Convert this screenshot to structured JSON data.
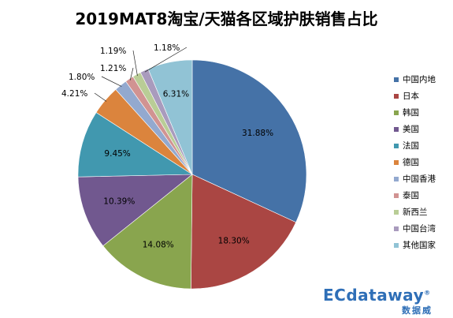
{
  "chart_data": {
    "type": "pie",
    "title": "2019MAT8淘宝/天猫各区域护肤销售占比",
    "categories": [
      "中国内地",
      "日本",
      "韩国",
      "美国",
      "法国",
      "德国",
      "中国香港",
      "泰国",
      "新西兰",
      "中国台湾",
      "其他国家"
    ],
    "values": [
      31.88,
      18.3,
      14.08,
      10.39,
      9.45,
      4.21,
      1.8,
      1.21,
      1.19,
      1.18,
      6.31
    ],
    "labels": [
      "31.88%",
      "18.30%",
      "14.08%",
      "10.39%",
      "9.45%",
      "4.21%",
      "1.80%",
      "1.21%",
      "1.19%",
      "1.18%",
      "6.31%"
    ],
    "colors": [
      "#4572a7",
      "#aa4643",
      "#89a54e",
      "#71588f",
      "#4198af",
      "#db843d",
      "#93a9cf",
      "#d19392",
      "#b9cd96",
      "#a99bbd",
      "#91c3d5"
    ],
    "legend": "right",
    "start_angle_deg": 0,
    "direction": "clockwise"
  },
  "watermark": {
    "main": "ECdataway",
    "sub": "数据威",
    "reg": "®"
  }
}
